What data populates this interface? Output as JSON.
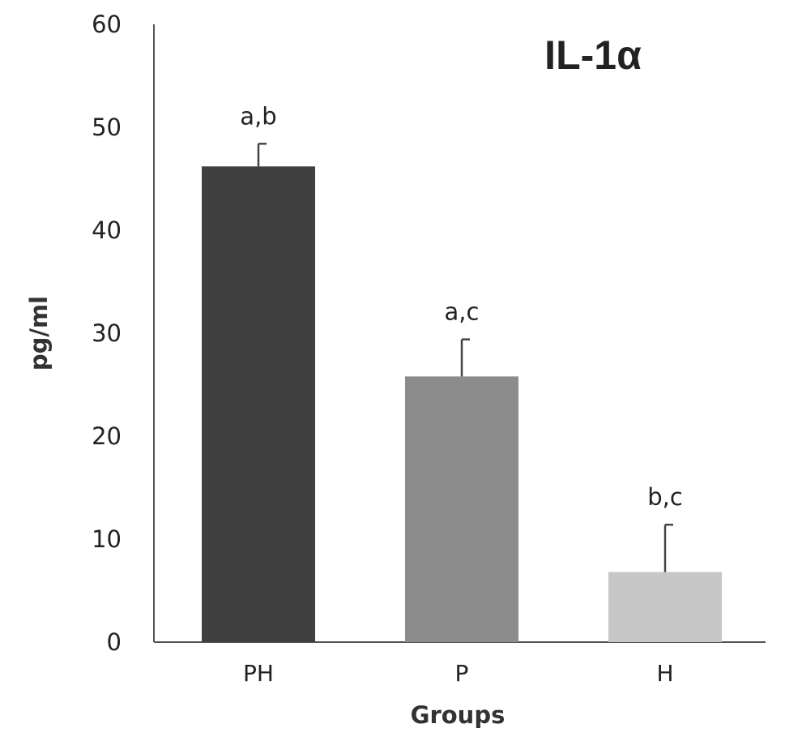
{
  "chart_data": {
    "type": "bar",
    "title": "IL-1α",
    "xlabel": "Groups",
    "ylabel": "pg/ml",
    "ylim": [
      0,
      60
    ],
    "yticks": [
      0,
      10,
      20,
      30,
      40,
      50,
      60
    ],
    "categories": [
      "PH",
      "P",
      "H"
    ],
    "values": [
      46.2,
      25.8,
      6.8
    ],
    "errors": [
      2.2,
      3.6,
      4.6
    ],
    "significance_labels": [
      "a,b",
      "a,c",
      "b,c"
    ],
    "bar_colors": [
      "#404040",
      "#8c8c8c",
      "#c6c6c6"
    ],
    "grid": false,
    "legend": "none"
  }
}
